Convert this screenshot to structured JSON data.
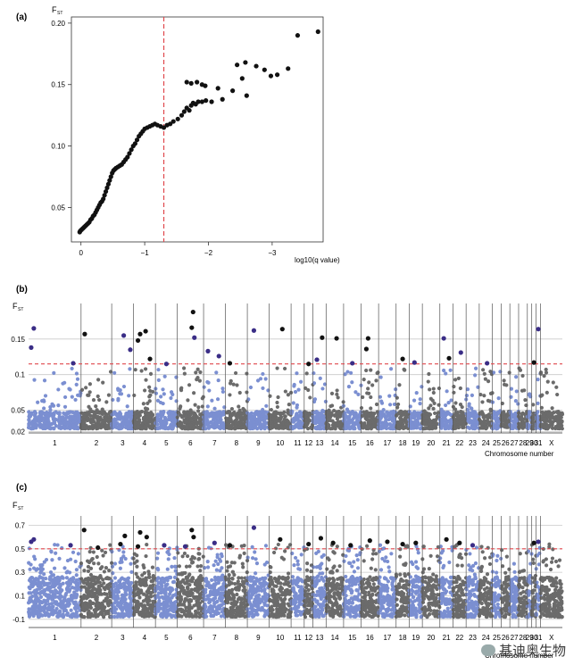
{
  "figure": {
    "watermark": "基迪奥生物",
    "watermark_icon": "wechat-icon"
  },
  "colors": {
    "blue": "#7b8fd1",
    "grey": "#6b6b6b",
    "sig_black": "#111111",
    "sig_purple": "#3a2d86",
    "threshold": "#e0474c"
  },
  "chart_data": [
    {
      "panel": "(a)",
      "type": "scatter",
      "ylabel": "F",
      "ylabel_sub": "ST",
      "xlabel": "log10(q value)",
      "xlim": [
        0.15,
        -3.8
      ],
      "ylim": [
        0.022,
        0.205
      ],
      "xticks": [
        0,
        -1,
        -2,
        -3
      ],
      "xtick_labels": [
        "0",
        "−1",
        "−2",
        "−3"
      ],
      "yticks": [
        0.05,
        0.1,
        0.15,
        0.2
      ],
      "ytick_labels": [
        "0.05",
        "0.10",
        "0.15",
        "0.20"
      ],
      "threshold_x": -1.3,
      "points": [
        [
          0.02,
          0.03
        ],
        [
          0.01,
          0.031
        ],
        [
          -0.01,
          0.032
        ],
        [
          -0.03,
          0.033
        ],
        [
          -0.05,
          0.034
        ],
        [
          -0.07,
          0.035
        ],
        [
          -0.09,
          0.036
        ],
        [
          -0.11,
          0.037
        ],
        [
          -0.13,
          0.038
        ],
        [
          -0.15,
          0.04
        ],
        [
          -0.17,
          0.041
        ],
        [
          -0.19,
          0.043
        ],
        [
          -0.21,
          0.044
        ],
        [
          -0.23,
          0.046
        ],
        [
          -0.25,
          0.048
        ],
        [
          -0.27,
          0.05
        ],
        [
          -0.29,
          0.052
        ],
        [
          -0.31,
          0.054
        ],
        [
          -0.33,
          0.055
        ],
        [
          -0.35,
          0.057
        ],
        [
          -0.37,
          0.06
        ],
        [
          -0.39,
          0.063
        ],
        [
          -0.41,
          0.066
        ],
        [
          -0.43,
          0.069
        ],
        [
          -0.45,
          0.072
        ],
        [
          -0.47,
          0.075
        ],
        [
          -0.49,
          0.078
        ],
        [
          -0.51,
          0.08
        ],
        [
          -0.53,
          0.081
        ],
        [
          -0.55,
          0.082
        ],
        [
          -0.58,
          0.083
        ],
        [
          -0.61,
          0.084
        ],
        [
          -0.64,
          0.085
        ],
        [
          -0.67,
          0.087
        ],
        [
          -0.7,
          0.089
        ],
        [
          -0.73,
          0.091
        ],
        [
          -0.76,
          0.094
        ],
        [
          -0.79,
          0.097
        ],
        [
          -0.82,
          0.1
        ],
        [
          -0.85,
          0.102
        ],
        [
          -0.88,
          0.105
        ],
        [
          -0.91,
          0.108
        ],
        [
          -0.94,
          0.11
        ],
        [
          -0.97,
          0.112
        ],
        [
          -1.0,
          0.114
        ],
        [
          -1.04,
          0.115
        ],
        [
          -1.08,
          0.116
        ],
        [
          -1.12,
          0.117
        ],
        [
          -1.16,
          0.118
        ],
        [
          -1.2,
          0.117
        ],
        [
          -1.25,
          0.116
        ],
        [
          -1.3,
          0.115
        ],
        [
          -1.35,
          0.117
        ],
        [
          -1.4,
          0.118
        ],
        [
          -1.45,
          0.12
        ],
        [
          -1.52,
          0.122
        ],
        [
          -1.58,
          0.125
        ],
        [
          -1.62,
          0.128
        ],
        [
          -1.66,
          0.131
        ],
        [
          -1.7,
          0.129
        ],
        [
          -1.73,
          0.133
        ],
        [
          -1.76,
          0.135
        ],
        [
          -1.8,
          0.134
        ],
        [
          -1.84,
          0.136
        ],
        [
          -1.9,
          0.136
        ],
        [
          -1.96,
          0.137
        ],
        [
          -2.05,
          0.136
        ],
        [
          -1.66,
          0.152
        ],
        [
          -1.73,
          0.151
        ],
        [
          -1.82,
          0.152
        ],
        [
          -1.9,
          0.15
        ],
        [
          -2.15,
          0.147
        ],
        [
          -2.22,
          0.138
        ],
        [
          -2.38,
          0.145
        ],
        [
          -2.45,
          0.166
        ],
        [
          -2.58,
          0.168
        ],
        [
          -2.75,
          0.165
        ],
        [
          -2.53,
          0.155
        ],
        [
          -2.88,
          0.162
        ],
        [
          -2.98,
          0.157
        ],
        [
          -3.08,
          0.158
        ],
        [
          -3.25,
          0.163
        ],
        [
          -3.4,
          0.19
        ],
        [
          -3.72,
          0.193
        ],
        [
          -2.6,
          0.141
        ],
        [
          -1.95,
          0.149
        ]
      ]
    },
    {
      "panel": "(b)",
      "type": "scatter",
      "ylabel": "F",
      "ylabel_sub": "ST",
      "xlabel": "Chromosome number",
      "ylim": [
        0.018,
        0.2
      ],
      "yticks": [
        0.02,
        0.05,
        0.1,
        0.15
      ],
      "ytick_labels": [
        "0.02",
        "0.05",
        "0.1",
        "0.15"
      ],
      "threshold_y": 0.115,
      "chromosomes": [
        "1",
        "2",
        "3",
        "4",
        "5",
        "6",
        "7",
        "8",
        "9",
        "10",
        "11",
        "12",
        "13",
        "14",
        "15",
        "16",
        "17",
        "18",
        "19",
        "20",
        "21",
        "22",
        "23",
        "24",
        "25",
        "26",
        "27",
        "28",
        "29",
        "30",
        "31",
        "X"
      ],
      "chrom_sizes": [
        12,
        7,
        5,
        5,
        5,
        6,
        5,
        5,
        5,
        5,
        3,
        2,
        3,
        4,
        4,
        4,
        4,
        3,
        3,
        4,
        3,
        3,
        3,
        3,
        2,
        2,
        2,
        2,
        1,
        1,
        1,
        5
      ],
      "tick_labels": [
        "1",
        "2",
        "3",
        "4",
        "5",
        "6",
        "7",
        "8",
        "9",
        "10",
        "11",
        "12",
        "13",
        "14",
        "15",
        "16",
        "17",
        "18",
        "19",
        "20",
        "21",
        "22",
        "23",
        "24",
        "25",
        "26",
        "27",
        "28",
        "29",
        "30",
        "31",
        "X"
      ],
      "significant": [
        {
          "chr": "1",
          "pos": 0.1,
          "y": 0.165,
          "tone": "purple"
        },
        {
          "chr": "1",
          "pos": 0.05,
          "y": 0.138,
          "tone": "purple"
        },
        {
          "chr": "1",
          "pos": 0.85,
          "y": 0.116,
          "tone": "purple"
        },
        {
          "chr": "2",
          "pos": 0.12,
          "y": 0.157,
          "tone": "black"
        },
        {
          "chr": "3",
          "pos": 0.55,
          "y": 0.155,
          "tone": "purple"
        },
        {
          "chr": "3",
          "pos": 0.85,
          "y": 0.135,
          "tone": "purple"
        },
        {
          "chr": "4",
          "pos": 0.3,
          "y": 0.157,
          "tone": "black"
        },
        {
          "chr": "4",
          "pos": 0.55,
          "y": 0.161,
          "tone": "black"
        },
        {
          "chr": "4",
          "pos": 0.2,
          "y": 0.148,
          "tone": "black"
        },
        {
          "chr": "4",
          "pos": 0.75,
          "y": 0.122,
          "tone": "black"
        },
        {
          "chr": "5",
          "pos": 0.5,
          "y": 0.115,
          "tone": "purple"
        },
        {
          "chr": "6",
          "pos": 0.6,
          "y": 0.188,
          "tone": "black"
        },
        {
          "chr": "6",
          "pos": 0.55,
          "y": 0.166,
          "tone": "black"
        },
        {
          "chr": "6",
          "pos": 0.65,
          "y": 0.152,
          "tone": "purple"
        },
        {
          "chr": "7",
          "pos": 0.2,
          "y": 0.133,
          "tone": "purple"
        },
        {
          "chr": "7",
          "pos": 0.7,
          "y": 0.126,
          "tone": "purple"
        },
        {
          "chr": "8",
          "pos": 0.2,
          "y": 0.116,
          "tone": "black"
        },
        {
          "chr": "9",
          "pos": 0.3,
          "y": 0.162,
          "tone": "purple"
        },
        {
          "chr": "10",
          "pos": 0.6,
          "y": 0.164,
          "tone": "black"
        },
        {
          "chr": "12",
          "pos": 0.5,
          "y": 0.115,
          "tone": "black"
        },
        {
          "chr": "13",
          "pos": 0.3,
          "y": 0.121,
          "tone": "purple"
        },
        {
          "chr": "13",
          "pos": 0.7,
          "y": 0.152,
          "tone": "black"
        },
        {
          "chr": "14",
          "pos": 0.6,
          "y": 0.151,
          "tone": "black"
        },
        {
          "chr": "15",
          "pos": 0.5,
          "y": 0.116,
          "tone": "purple"
        },
        {
          "chr": "16",
          "pos": 0.4,
          "y": 0.151,
          "tone": "black"
        },
        {
          "chr": "16",
          "pos": 0.3,
          "y": 0.136,
          "tone": "black"
        },
        {
          "chr": "18",
          "pos": 0.5,
          "y": 0.122,
          "tone": "black"
        },
        {
          "chr": "19",
          "pos": 0.4,
          "y": 0.117,
          "tone": "purple"
        },
        {
          "chr": "21",
          "pos": 0.3,
          "y": 0.151,
          "tone": "purple"
        },
        {
          "chr": "21",
          "pos": 0.7,
          "y": 0.123,
          "tone": "black"
        },
        {
          "chr": "22",
          "pos": 0.6,
          "y": 0.131,
          "tone": "purple"
        },
        {
          "chr": "24",
          "pos": 0.6,
          "y": 0.116,
          "tone": "purple"
        },
        {
          "chr": "30",
          "pos": 0.5,
          "y": 0.117,
          "tone": "black"
        },
        {
          "chr": "31",
          "pos": 0.5,
          "y": 0.164,
          "tone": "purple"
        }
      ]
    },
    {
      "panel": "(c)",
      "type": "scatter",
      "ylabel": "F",
      "ylabel_sub": "ST",
      "xlabel": "Chromosome number",
      "ylim": [
        -0.17,
        0.78
      ],
      "yticks": [
        -0.1,
        0.1,
        0.3,
        0.5,
        0.7
      ],
      "ytick_labels": [
        "-0.1",
        "0.1",
        "0.3",
        "0.5",
        "0.7"
      ],
      "threshold_y": 0.5,
      "chromosomes": [
        "1",
        "2",
        "3",
        "4",
        "5",
        "6",
        "7",
        "8",
        "9",
        "10",
        "11",
        "12",
        "13",
        "14",
        "15",
        "16",
        "17",
        "18",
        "19",
        "20",
        "21",
        "22",
        "23",
        "24",
        "25",
        "26",
        "27",
        "28",
        "29",
        "30",
        "31",
        "X"
      ],
      "chrom_sizes": [
        12,
        7,
        5,
        5,
        5,
        6,
        5,
        5,
        5,
        5,
        3,
        2,
        3,
        4,
        4,
        4,
        4,
        3,
        3,
        4,
        3,
        3,
        3,
        3,
        2,
        2,
        2,
        2,
        1,
        1,
        1,
        5
      ],
      "tick_labels": [
        "1",
        "2",
        "3",
        "4",
        "5",
        "6",
        "7",
        "8",
        "9",
        "10",
        "11",
        "12",
        "13",
        "14",
        "15",
        "16",
        "17",
        "18",
        "19",
        "20",
        "21",
        "22",
        "23",
        "24",
        "25",
        "26",
        "27",
        "28",
        "29",
        "30",
        "31",
        "X"
      ],
      "significant": [
        {
          "chr": "1",
          "pos": 0.05,
          "y": 0.56,
          "tone": "purple"
        },
        {
          "chr": "1",
          "pos": 0.1,
          "y": 0.58,
          "tone": "purple"
        },
        {
          "chr": "1",
          "pos": 0.8,
          "y": 0.53,
          "tone": "purple"
        },
        {
          "chr": "2",
          "pos": 0.1,
          "y": 0.66,
          "tone": "black"
        },
        {
          "chr": "2",
          "pos": 0.55,
          "y": 0.51,
          "tone": "black"
        },
        {
          "chr": "3",
          "pos": 0.4,
          "y": 0.54,
          "tone": "black"
        },
        {
          "chr": "3",
          "pos": 0.6,
          "y": 0.61,
          "tone": "black"
        },
        {
          "chr": "4",
          "pos": 0.3,
          "y": 0.64,
          "tone": "black"
        },
        {
          "chr": "4",
          "pos": 0.6,
          "y": 0.6,
          "tone": "black"
        },
        {
          "chr": "4",
          "pos": 0.2,
          "y": 0.52,
          "tone": "black"
        },
        {
          "chr": "5",
          "pos": 0.4,
          "y": 0.53,
          "tone": "purple"
        },
        {
          "chr": "6",
          "pos": 0.55,
          "y": 0.66,
          "tone": "black"
        },
        {
          "chr": "6",
          "pos": 0.62,
          "y": 0.6,
          "tone": "black"
        },
        {
          "chr": "6",
          "pos": 0.3,
          "y": 0.52,
          "tone": "purple"
        },
        {
          "chr": "7",
          "pos": 0.5,
          "y": 0.55,
          "tone": "purple"
        },
        {
          "chr": "8",
          "pos": 0.2,
          "y": 0.53,
          "tone": "black"
        },
        {
          "chr": "9",
          "pos": 0.3,
          "y": 0.68,
          "tone": "purple"
        },
        {
          "chr": "10",
          "pos": 0.5,
          "y": 0.58,
          "tone": "black"
        },
        {
          "chr": "12",
          "pos": 0.5,
          "y": 0.54,
          "tone": "black"
        },
        {
          "chr": "13",
          "pos": 0.6,
          "y": 0.59,
          "tone": "black"
        },
        {
          "chr": "14",
          "pos": 0.4,
          "y": 0.55,
          "tone": "black"
        },
        {
          "chr": "15",
          "pos": 0.4,
          "y": 0.53,
          "tone": "black"
        },
        {
          "chr": "16",
          "pos": 0.5,
          "y": 0.57,
          "tone": "black"
        },
        {
          "chr": "17",
          "pos": 0.5,
          "y": 0.56,
          "tone": "black"
        },
        {
          "chr": "18",
          "pos": 0.5,
          "y": 0.54,
          "tone": "black"
        },
        {
          "chr": "19",
          "pos": 0.5,
          "y": 0.55,
          "tone": "black"
        },
        {
          "chr": "21",
          "pos": 0.5,
          "y": 0.58,
          "tone": "black"
        },
        {
          "chr": "22",
          "pos": 0.5,
          "y": 0.55,
          "tone": "black"
        },
        {
          "chr": "23",
          "pos": 0.5,
          "y": 0.53,
          "tone": "purple"
        },
        {
          "chr": "30",
          "pos": 0.5,
          "y": 0.55,
          "tone": "black"
        },
        {
          "chr": "31",
          "pos": 0.5,
          "y": 0.56,
          "tone": "purple"
        }
      ]
    }
  ]
}
